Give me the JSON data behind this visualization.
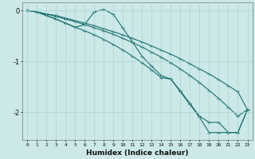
{
  "xlabel": "Humidex (Indice chaleur)",
  "background_color": "#cce8e8",
  "grid_color": "#aad4d4",
  "line_color": "#1a7070",
  "xlim": [
    -0.5,
    23.5
  ],
  "ylim": [
    -2.55,
    0.15
  ],
  "yticks": [
    0,
    -1,
    -2
  ],
  "xticks": [
    0,
    1,
    2,
    3,
    4,
    5,
    6,
    7,
    8,
    9,
    10,
    11,
    12,
    13,
    14,
    15,
    16,
    17,
    18,
    19,
    20,
    21,
    22,
    23
  ],
  "line1_x": [
    0,
    1,
    2,
    3,
    4,
    5,
    6,
    7,
    8,
    9,
    10,
    11,
    12,
    13,
    14,
    15,
    16,
    17,
    18,
    19,
    20,
    21,
    22,
    23
  ],
  "line1_y": [
    0.0,
    -0.03,
    -0.07,
    -0.1,
    -0.15,
    -0.2,
    -0.25,
    -0.3,
    -0.36,
    -0.42,
    -0.48,
    -0.55,
    -0.62,
    -0.7,
    -0.78,
    -0.86,
    -0.95,
    -1.05,
    -1.15,
    -1.25,
    -1.36,
    -1.48,
    -1.6,
    -1.95
  ],
  "line2_x": [
    0,
    1,
    2,
    3,
    4,
    5,
    6,
    7,
    8,
    9,
    10,
    11,
    12,
    13,
    14,
    15,
    16,
    17,
    18,
    19,
    20,
    21,
    22,
    23
  ],
  "line2_y": [
    0.0,
    -0.03,
    -0.07,
    -0.12,
    -0.17,
    -0.22,
    -0.28,
    -0.34,
    -0.4,
    -0.47,
    -0.55,
    -0.63,
    -0.72,
    -0.82,
    -0.92,
    -1.03,
    -1.15,
    -1.28,
    -1.42,
    -1.57,
    -1.73,
    -1.9,
    -2.08,
    -1.95
  ],
  "line3_x": [
    0,
    1,
    2,
    3,
    4,
    5,
    6,
    7,
    8,
    9,
    10,
    11,
    12,
    13,
    14,
    15,
    16,
    17,
    18,
    19,
    20,
    21,
    22,
    23
  ],
  "line3_y": [
    0.0,
    -0.03,
    -0.1,
    -0.17,
    -0.25,
    -0.33,
    -0.28,
    -0.03,
    0.02,
    -0.08,
    -0.35,
    -0.62,
    -0.9,
    -1.1,
    -1.28,
    -1.35,
    -1.6,
    -1.85,
    -2.1,
    -2.4,
    -2.4,
    -2.4,
    -2.4,
    -1.95
  ],
  "line4_x": [
    0,
    1,
    2,
    3,
    4,
    5,
    6,
    7,
    8,
    9,
    10,
    11,
    12,
    13,
    14,
    15,
    16,
    17,
    18,
    19,
    20,
    21,
    22,
    23
  ],
  "line4_y": [
    0.0,
    -0.03,
    -0.1,
    -0.17,
    -0.25,
    -0.33,
    -0.4,
    -0.48,
    -0.57,
    -0.67,
    -0.78,
    -0.9,
    -1.03,
    -1.17,
    -1.32,
    -1.35,
    -1.58,
    -1.83,
    -2.08,
    -2.2,
    -2.2,
    -2.4,
    -2.4,
    -1.95
  ]
}
